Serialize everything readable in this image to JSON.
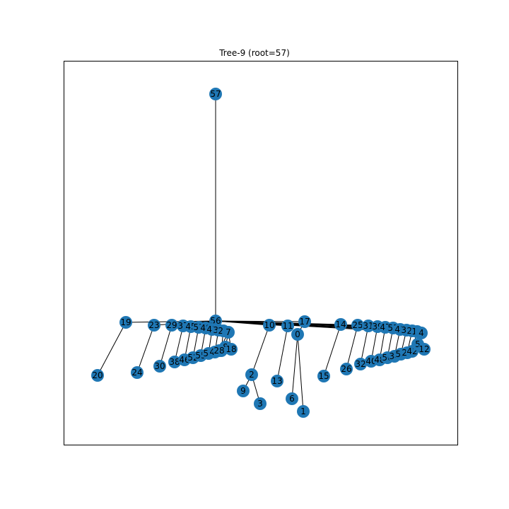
{
  "title": "Tree-9 (root=57)",
  "colors": {
    "node": "#1f77b4",
    "edge": "#000000",
    "label": "#000000"
  },
  "graph": {
    "root": "57",
    "nodes": [
      "57",
      "56",
      "19",
      "20",
      "23",
      "24",
      "29",
      "30",
      "37",
      "38",
      "45",
      "46",
      "51",
      "52",
      "49",
      "55",
      "41",
      "54",
      "33",
      "44",
      "27",
      "36",
      "7",
      "8",
      "18",
      "28",
      "10",
      "2",
      "9",
      "3",
      "11",
      "13",
      "17",
      "0",
      "6",
      "1",
      "14",
      "15",
      "25",
      "26",
      "31",
      "32",
      "39",
      "40",
      "47",
      "48",
      "53",
      "50",
      "43",
      "34",
      "35",
      "58",
      "21",
      "22",
      "16",
      "42",
      "4",
      "5",
      "12"
    ],
    "edges": [
      [
        "57",
        "56"
      ],
      [
        "56",
        "19"
      ],
      [
        "19",
        "20"
      ],
      [
        "56",
        "23"
      ],
      [
        "23",
        "24"
      ],
      [
        "56",
        "29"
      ],
      [
        "29",
        "30"
      ],
      [
        "56",
        "37"
      ],
      [
        "37",
        "38"
      ],
      [
        "56",
        "45"
      ],
      [
        "45",
        "46"
      ],
      [
        "56",
        "51"
      ],
      [
        "51",
        "52"
      ],
      [
        "56",
        "49"
      ],
      [
        "49",
        "55"
      ],
      [
        "56",
        "41"
      ],
      [
        "41",
        "54"
      ],
      [
        "56",
        "33"
      ],
      [
        "33",
        "44"
      ],
      [
        "56",
        "27"
      ],
      [
        "27",
        "36"
      ],
      [
        "56",
        "7"
      ],
      [
        "7",
        "8"
      ],
      [
        "7",
        "28"
      ],
      [
        "7",
        "18"
      ],
      [
        "56",
        "10"
      ],
      [
        "10",
        "2"
      ],
      [
        "2",
        "9"
      ],
      [
        "2",
        "3"
      ],
      [
        "56",
        "11"
      ],
      [
        "11",
        "13"
      ],
      [
        "56",
        "17"
      ],
      [
        "17",
        "0"
      ],
      [
        "0",
        "6"
      ],
      [
        "0",
        "1"
      ],
      [
        "56",
        "14"
      ],
      [
        "14",
        "15"
      ],
      [
        "56",
        "25"
      ],
      [
        "25",
        "26"
      ],
      [
        "56",
        "31"
      ],
      [
        "31",
        "32"
      ],
      [
        "56",
        "39"
      ],
      [
        "39",
        "40"
      ],
      [
        "56",
        "47"
      ],
      [
        "47",
        "48"
      ],
      [
        "56",
        "53"
      ],
      [
        "53",
        "50"
      ],
      [
        "56",
        "43"
      ],
      [
        "43",
        "34"
      ],
      [
        "56",
        "35"
      ],
      [
        "35",
        "58"
      ],
      [
        "56",
        "21"
      ],
      [
        "21",
        "22"
      ],
      [
        "56",
        "16"
      ],
      [
        "16",
        "42"
      ],
      [
        "56",
        "4"
      ],
      [
        "4",
        "5"
      ],
      [
        "5",
        "12"
      ]
    ]
  }
}
